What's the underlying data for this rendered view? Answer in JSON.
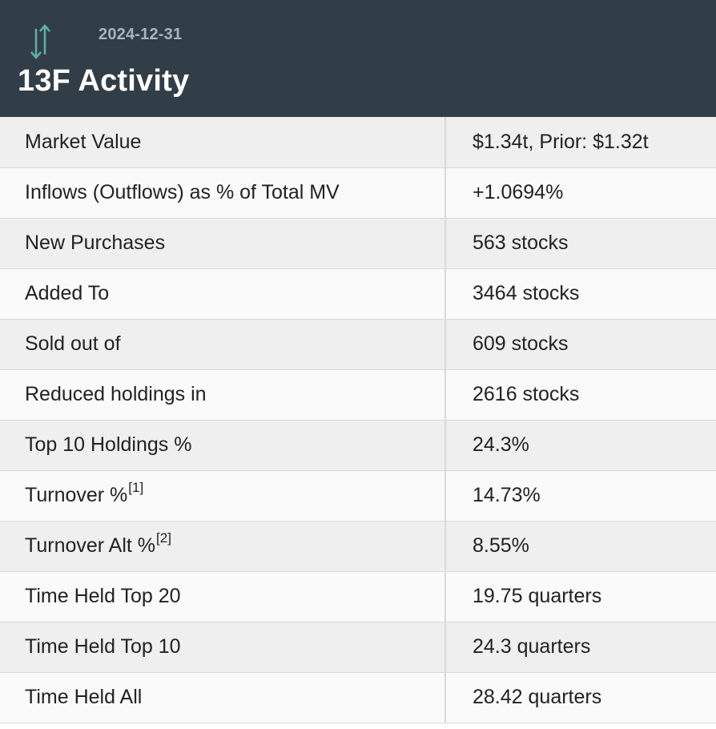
{
  "header": {
    "date": "2024-12-31",
    "title": "13F Activity",
    "icon": "up-down-arrows-icon",
    "icon_color": "#5fb3a0"
  },
  "rows": [
    {
      "label": "Market Value",
      "value": "$1.34t, Prior: $1.32t"
    },
    {
      "label": "Inflows (Outflows) as % of Total MV",
      "value": "+1.0694%",
      "value_color": "#1a8a1a"
    },
    {
      "label": "New Purchases",
      "value": "563 stocks"
    },
    {
      "label": "Added To",
      "value": "3464 stocks"
    },
    {
      "label": "Sold out of",
      "value": "609 stocks"
    },
    {
      "label": "Reduced holdings in",
      "value": "2616 stocks"
    },
    {
      "label": "Top 10 Holdings %",
      "value": "24.3%"
    },
    {
      "label": "Turnover %",
      "footnote": "[1]",
      "value": "14.73%"
    },
    {
      "label": "Turnover Alt %",
      "footnote": "[2]",
      "value": "8.55%"
    },
    {
      "label": "Time Held Top 20",
      "value": "19.75 quarters"
    },
    {
      "label": "Time Held Top 10",
      "value": "24.3 quarters"
    },
    {
      "label": "Time Held All",
      "value": "28.42 quarters"
    }
  ]
}
